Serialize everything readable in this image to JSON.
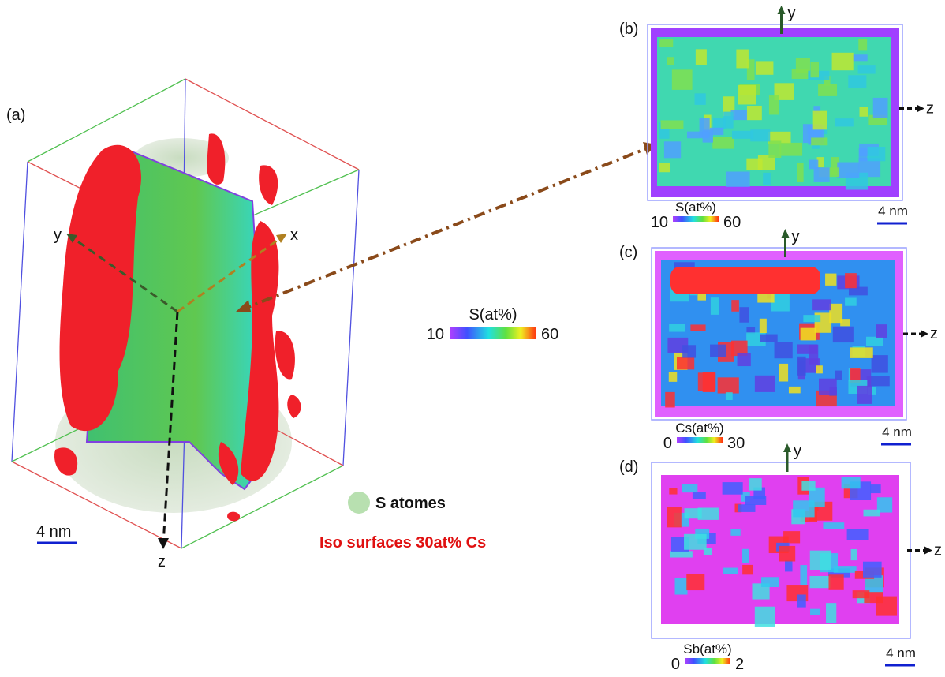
{
  "panel_a": {
    "label": "(a)",
    "axis_x": "x",
    "axis_y": "y",
    "axis_z": "z",
    "scale_bar": "4 nm",
    "legend": {
      "atoms": "S atomes",
      "iso": "Iso surfaces 30at% Cs"
    }
  },
  "center_colorbar": {
    "title": "S(at%)",
    "min": "10",
    "max": "60"
  },
  "maps": [
    {
      "label": "(b)",
      "axis_y": "y",
      "axis_z": "z",
      "colorbar": {
        "title": "S(at%)",
        "min": "10",
        "max": "60"
      },
      "scale_bar": "4 nm"
    },
    {
      "label": "(c)",
      "axis_y": "y",
      "axis_z": "z",
      "colorbar": {
        "title": "Cs(at%)",
        "min": "0",
        "max": "30"
      },
      "scale_bar": "4 nm"
    },
    {
      "label": "(d)",
      "axis_y": "y",
      "axis_z": "z",
      "colorbar": {
        "title": "Sb(at%)",
        "min": "0",
        "max": "2"
      },
      "scale_bar": "4 nm"
    }
  ]
}
